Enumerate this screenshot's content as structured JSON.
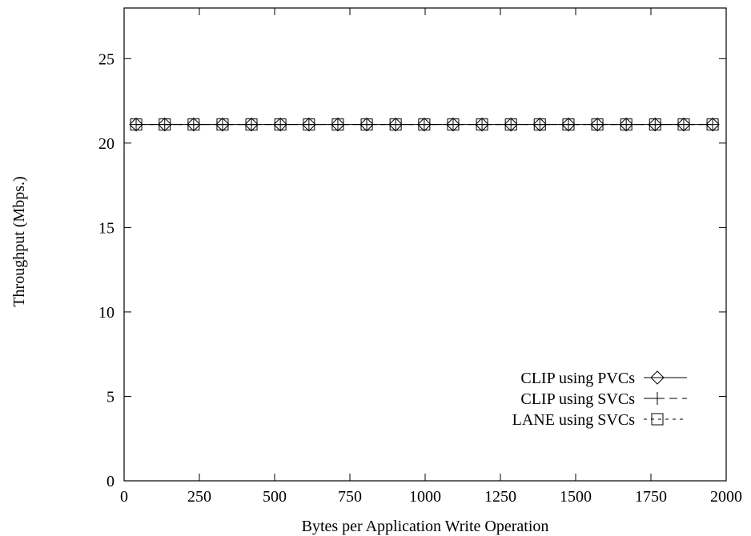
{
  "chart_data": {
    "type": "line",
    "title": "",
    "xlabel": "Bytes per Application Write Operation",
    "ylabel": "Throughput (Mbps.)",
    "xlim": [
      0,
      2000
    ],
    "ylim": [
      0,
      28
    ],
    "xticks": [
      0,
      250,
      500,
      750,
      1000,
      1250,
      1500,
      1750,
      2000
    ],
    "yticks": [
      0,
      5,
      10,
      15,
      20,
      25
    ],
    "x": [
      40,
      135,
      231,
      327,
      423,
      519,
      614,
      710,
      806,
      902,
      997,
      1093,
      1189,
      1285,
      1381,
      1476,
      1572,
      1668,
      1764,
      1859,
      1955
    ],
    "grid": false,
    "legend_position": "bottom-right",
    "series": [
      {
        "name": "CLIP using PVCs",
        "marker": "diamond",
        "line_style": "solid",
        "values": [
          21.1,
          21.1,
          21.1,
          21.1,
          21.1,
          21.1,
          21.1,
          21.1,
          21.1,
          21.1,
          21.1,
          21.1,
          21.1,
          21.1,
          21.1,
          21.1,
          21.1,
          21.1,
          21.1,
          21.1,
          21.1
        ]
      },
      {
        "name": "CLIP using SVCs",
        "marker": "plus",
        "line_style": "dashed",
        "values": [
          21.1,
          21.1,
          21.1,
          21.1,
          21.1,
          21.1,
          21.1,
          21.1,
          21.1,
          21.1,
          21.1,
          21.1,
          21.1,
          21.1,
          21.1,
          21.1,
          21.1,
          21.1,
          21.1,
          21.1,
          21.1
        ]
      },
      {
        "name": "LANE using SVCs",
        "marker": "square",
        "line_style": "short-dashed",
        "values": [
          21.1,
          21.1,
          21.1,
          21.1,
          21.1,
          21.1,
          21.1,
          21.1,
          21.1,
          21.1,
          21.1,
          21.1,
          21.1,
          21.1,
          21.1,
          21.1,
          21.1,
          21.1,
          21.1,
          21.1,
          21.1
        ]
      }
    ],
    "colors": {
      "foreground": "#000000",
      "background": "#ffffff"
    }
  }
}
